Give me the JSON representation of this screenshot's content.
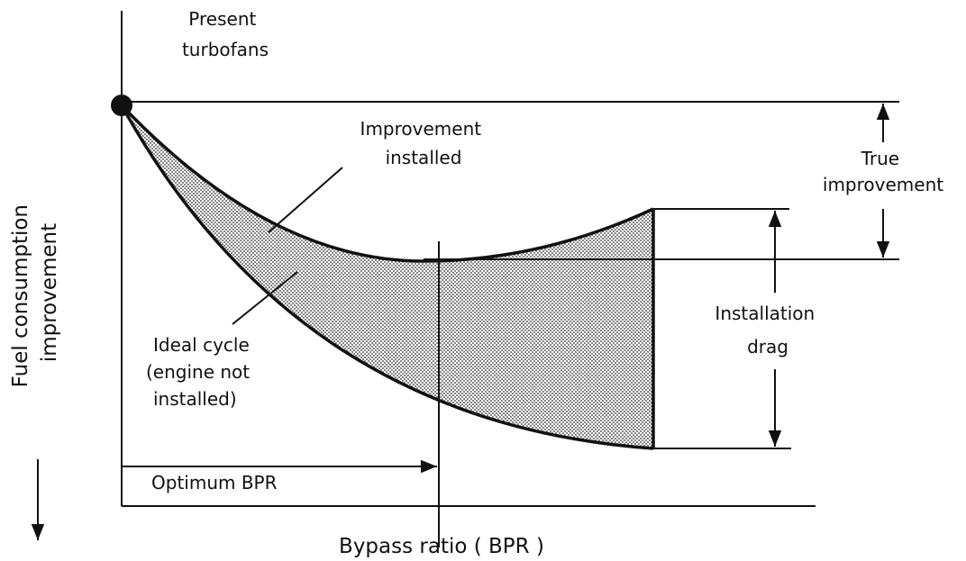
{
  "diagram": {
    "present_turbofans": [
      "Present",
      "turbofans"
    ],
    "improvement_installed": [
      "Improvement",
      "installed"
    ],
    "true_improvement": [
      "True",
      "improvement"
    ],
    "installation_drag": [
      "Installation",
      "drag"
    ],
    "ideal_cycle": [
      "Ideal cycle",
      "(engine not",
      "installed)"
    ],
    "optimum_bpr": "Optimum BPR",
    "y_axis_label": [
      "Fuel consumption",
      "improvement"
    ],
    "x_axis_label": "Bypass ratio ( BPR )"
  }
}
